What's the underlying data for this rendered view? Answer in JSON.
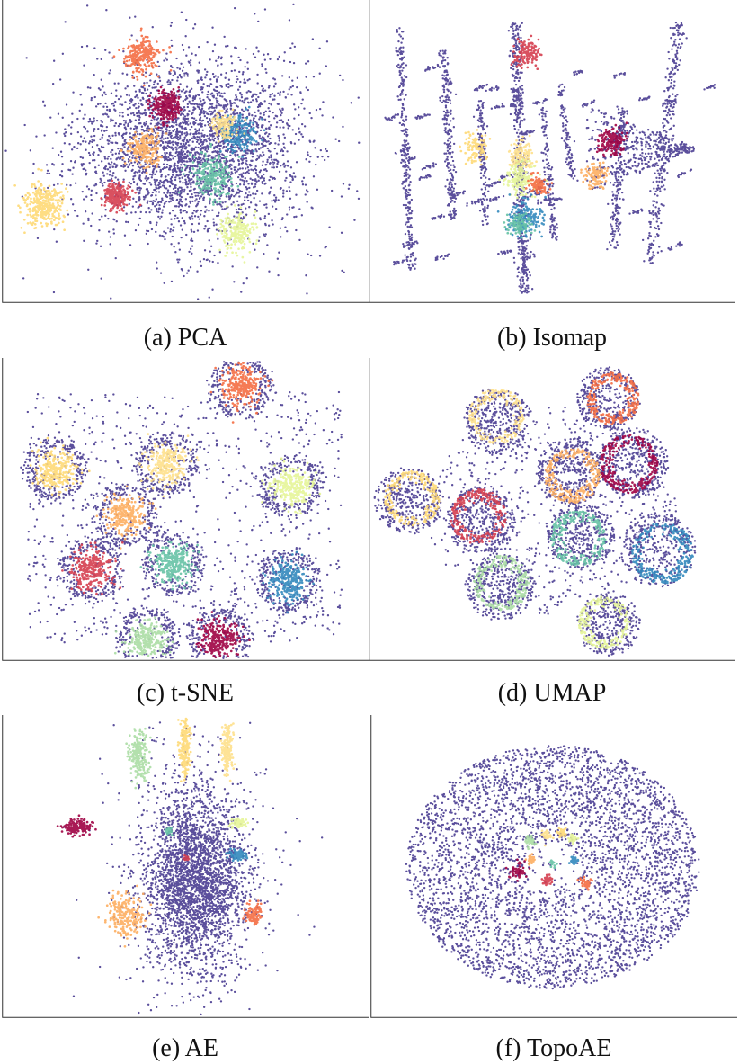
{
  "palette": {
    "background": "#5b4f9c",
    "clusters": [
      "#9e0142",
      "#d53e4f",
      "#f46d43",
      "#fdae61",
      "#fee08b",
      "#e6f598",
      "#abdda4",
      "#66c2a5",
      "#3288bd",
      "#fed976"
    ],
    "axis": "#333333"
  },
  "chart_data": [
    {
      "id": "a",
      "type": "scatter",
      "title": "(a) PCA",
      "xlabel": "",
      "ylabel": "",
      "xlim": [
        -1,
        1
      ],
      "ylim": [
        -1,
        1
      ],
      "grid": false,
      "background_cloud": {
        "center": [
          0.05,
          0.02
        ],
        "spread": [
          0.3,
          0.3
        ],
        "count": 3200,
        "shape": "gaussian"
      },
      "clusters": [
        {
          "center": [
            -0.1,
            0.31
          ],
          "spread": 0.04,
          "count": 260,
          "color_index": 0
        },
        {
          "center": [
            -0.38,
            -0.3
          ],
          "spread": 0.035,
          "count": 240,
          "color_index": 1
        },
        {
          "center": [
            -0.24,
            0.65
          ],
          "spread": 0.05,
          "count": 220,
          "color_index": 2
        },
        {
          "center": [
            -0.22,
            0.02
          ],
          "spread": 0.045,
          "count": 200,
          "color_index": 3
        },
        {
          "center": [
            -0.79,
            -0.35
          ],
          "spread": 0.055,
          "count": 300,
          "color_index": 9
        },
        {
          "center": [
            0.29,
            -0.55
          ],
          "spread": 0.05,
          "count": 220,
          "color_index": 5
        },
        {
          "center": [
            0.15,
            -0.17
          ],
          "spread": 0.06,
          "count": 240,
          "color_index": 7
        },
        {
          "center": [
            0.3,
            0.13
          ],
          "spread": 0.05,
          "count": 200,
          "color_index": 8
        },
        {
          "center": [
            0.22,
            0.18
          ],
          "spread": 0.035,
          "count": 120,
          "color_index": 4
        }
      ]
    },
    {
      "id": "b",
      "type": "scatter",
      "title": "(b) Isomap",
      "xlabel": "",
      "ylabel": "",
      "xlim": [
        -1,
        1
      ],
      "ylim": [
        -1,
        1
      ],
      "grid": false,
      "background_cloud": {
        "shape": "strips",
        "count": 2200
      },
      "clusters": [
        {
          "center": [
            -0.14,
            0.67
          ],
          "spread": 0.035,
          "count": 140,
          "color_index": 1
        },
        {
          "center": [
            -0.42,
            0.03
          ],
          "spread": 0.04,
          "count": 90,
          "color_index": 9
        },
        {
          "center": [
            -0.16,
            -0.02
          ],
          "spread": 0.035,
          "count": 130,
          "color_index": 4
        },
        {
          "center": [
            -0.17,
            -0.19
          ],
          "spread": 0.045,
          "count": 160,
          "color_index": 5
        },
        {
          "center": [
            -0.07,
            -0.22
          ],
          "spread": 0.03,
          "count": 100,
          "color_index": 2
        },
        {
          "center": [
            -0.15,
            -0.45
          ],
          "spread": 0.045,
          "count": 180,
          "color_index": 8
        },
        {
          "center": [
            -0.18,
            -0.49
          ],
          "spread": 0.03,
          "count": 100,
          "color_index": 7
        },
        {
          "center": [
            0.25,
            -0.16
          ],
          "spread": 0.035,
          "count": 100,
          "color_index": 3
        },
        {
          "center": [
            0.34,
            0.07
          ],
          "spread": 0.035,
          "count": 160,
          "color_index": 0
        }
      ]
    },
    {
      "id": "c",
      "type": "scatter",
      "title": "(c) t-SNE",
      "xlabel": "",
      "ylabel": "",
      "xlim": [
        -1,
        1
      ],
      "ylim": [
        -1,
        1
      ],
      "grid": false,
      "background_cloud": {
        "shape": "halos",
        "halo_radius": 0.17,
        "count_per_halo": 230,
        "diffuse_count": 900
      },
      "clusters": [
        {
          "center": [
            0.32,
            0.83
          ],
          "spread": 0.055,
          "count": 260,
          "color_index": 2
        },
        {
          "center": [
            -0.1,
            0.31
          ],
          "spread": 0.055,
          "count": 260,
          "color_index": 4
        },
        {
          "center": [
            -0.72,
            0.27
          ],
          "spread": 0.055,
          "count": 260,
          "color_index": 9
        },
        {
          "center": [
            0.6,
            0.16
          ],
          "spread": 0.055,
          "count": 260,
          "color_index": 5
        },
        {
          "center": [
            -0.33,
            -0.04
          ],
          "spread": 0.055,
          "count": 260,
          "color_index": 3
        },
        {
          "center": [
            -0.52,
            -0.4
          ],
          "spread": 0.055,
          "count": 260,
          "color_index": 1
        },
        {
          "center": [
            -0.06,
            -0.36
          ],
          "spread": 0.055,
          "count": 260,
          "color_index": 7
        },
        {
          "center": [
            0.58,
            -0.48
          ],
          "spread": 0.055,
          "count": 260,
          "color_index": 8
        },
        {
          "center": [
            -0.21,
            -0.87
          ],
          "spread": 0.055,
          "count": 260,
          "color_index": 6
        },
        {
          "center": [
            0.2,
            -0.87
          ],
          "spread": 0.055,
          "count": 260,
          "color_index": 0
        }
      ]
    },
    {
      "id": "d",
      "type": "scatter",
      "title": "(d) UMAP",
      "xlabel": "",
      "ylabel": "",
      "xlim": [
        -1,
        1
      ],
      "ylim": [
        -1,
        1
      ],
      "grid": false,
      "background_cloud": {
        "shape": "rings",
        "count_per_ring": 360,
        "diffuse_count": 700
      },
      "clusters": [
        {
          "center": [
            0.32,
            0.75
          ],
          "radius": 0.17,
          "count": 320,
          "color_index": 2
        },
        {
          "center": [
            -0.3,
            0.6
          ],
          "radius": 0.18,
          "count": 260,
          "color_index": 4
        },
        {
          "center": [
            0.46,
            0.32
          ],
          "radius": 0.19,
          "count": 360,
          "color_index": 0
        },
        {
          "center": [
            0.11,
            0.26
          ],
          "radius": 0.18,
          "count": 320,
          "color_index": 3
        },
        {
          "center": [
            -0.8,
            0.06
          ],
          "radius": 0.18,
          "count": 280,
          "color_index": 9
        },
        {
          "center": [
            -0.39,
            -0.07
          ],
          "radius": 0.18,
          "count": 320,
          "color_index": 1
        },
        {
          "center": [
            0.17,
            -0.17
          ],
          "radius": 0.18,
          "count": 320,
          "color_index": 7
        },
        {
          "center": [
            0.6,
            -0.27
          ],
          "radius": 0.2,
          "count": 360,
          "color_index": 8
        },
        {
          "center": [
            -0.29,
            -0.52
          ],
          "radius": 0.18,
          "count": 300,
          "color_index": 6
        },
        {
          "center": [
            0.32,
            -0.77
          ],
          "radius": 0.17,
          "count": 280,
          "color_index": 5
        }
      ]
    },
    {
      "id": "e",
      "type": "scatter",
      "title": "(e) AE",
      "xlabel": "",
      "ylabel": "",
      "xlim": [
        -1,
        1
      ],
      "ylim": [
        -1,
        1
      ],
      "grid": false,
      "background_cloud": {
        "center": [
          0.06,
          -0.08
        ],
        "spread": [
          0.14,
          0.3
        ],
        "count": 3200,
        "shape": "gaussian"
      },
      "clusters": [
        {
          "center": [
            -0.26,
            0.75
          ],
          "spread": [
            0.03,
            0.07
          ],
          "count": 220,
          "color_index": 6
        },
        {
          "center": [
            0.0,
            0.8
          ],
          "spread": [
            0.015,
            0.08
          ],
          "count": 180,
          "color_index": 9
        },
        {
          "center": [
            0.24,
            0.79
          ],
          "spread": [
            0.015,
            0.07
          ],
          "count": 160,
          "color_index": 4
        },
        {
          "center": [
            -0.6,
            0.27
          ],
          "spread": [
            0.04,
            0.02
          ],
          "count": 160,
          "color_index": 0
        },
        {
          "center": [
            -0.09,
            0.24
          ],
          "spread": [
            0.012,
            0.01
          ],
          "count": 30,
          "color_index": 7
        },
        {
          "center": [
            0.3,
            0.3
          ],
          "spread": [
            0.02,
            0.012
          ],
          "count": 80,
          "color_index": 5
        },
        {
          "center": [
            0.3,
            0.08
          ],
          "spread": [
            0.025,
            0.012
          ],
          "count": 100,
          "color_index": 8
        },
        {
          "center": [
            0.01,
            0.06
          ],
          "spread": [
            0.008,
            0.008
          ],
          "count": 20,
          "color_index": 1
        },
        {
          "center": [
            -0.33,
            -0.32
          ],
          "spread": [
            0.05,
            0.06
          ],
          "count": 220,
          "color_index": 3
        },
        {
          "center": [
            0.39,
            -0.32
          ],
          "spread": [
            0.025,
            0.03
          ],
          "count": 100,
          "color_index": 2
        }
      ]
    },
    {
      "id": "f",
      "type": "scatter",
      "title": "(f) TopoAE",
      "xlabel": "",
      "ylabel": "",
      "xlim": [
        -1,
        1
      ],
      "ylim": [
        -1,
        1
      ],
      "grid": false,
      "background_cloud": {
        "center": [
          0.0,
          0.0
        ],
        "radius": 0.82,
        "count": 4200,
        "shape": "disk"
      },
      "clusters": [
        {
          "center": [
            -0.13,
            0.18
          ],
          "spread": 0.015,
          "count": 40,
          "color_index": 6
        },
        {
          "center": [
            -0.04,
            0.21
          ],
          "spread": 0.015,
          "count": 30,
          "color_index": 4
        },
        {
          "center": [
            0.05,
            0.23
          ],
          "spread": 0.012,
          "count": 30,
          "color_index": 9
        },
        {
          "center": [
            0.11,
            0.19
          ],
          "spread": 0.012,
          "count": 30,
          "color_index": 5
        },
        {
          "center": [
            -0.12,
            0.05
          ],
          "spread": 0.012,
          "count": 30,
          "color_index": 3
        },
        {
          "center": [
            0.0,
            0.03
          ],
          "spread": 0.01,
          "count": 20,
          "color_index": 7
        },
        {
          "center": [
            0.12,
            0.04
          ],
          "spread": 0.012,
          "count": 30,
          "color_index": 8
        },
        {
          "center": [
            -0.2,
            -0.03
          ],
          "spread": 0.025,
          "count": 60,
          "color_index": 0
        },
        {
          "center": [
            -0.03,
            -0.09
          ],
          "spread": 0.015,
          "count": 40,
          "color_index": 1
        },
        {
          "center": [
            0.18,
            -0.11
          ],
          "spread": 0.018,
          "count": 40,
          "color_index": 2
        }
      ]
    }
  ]
}
